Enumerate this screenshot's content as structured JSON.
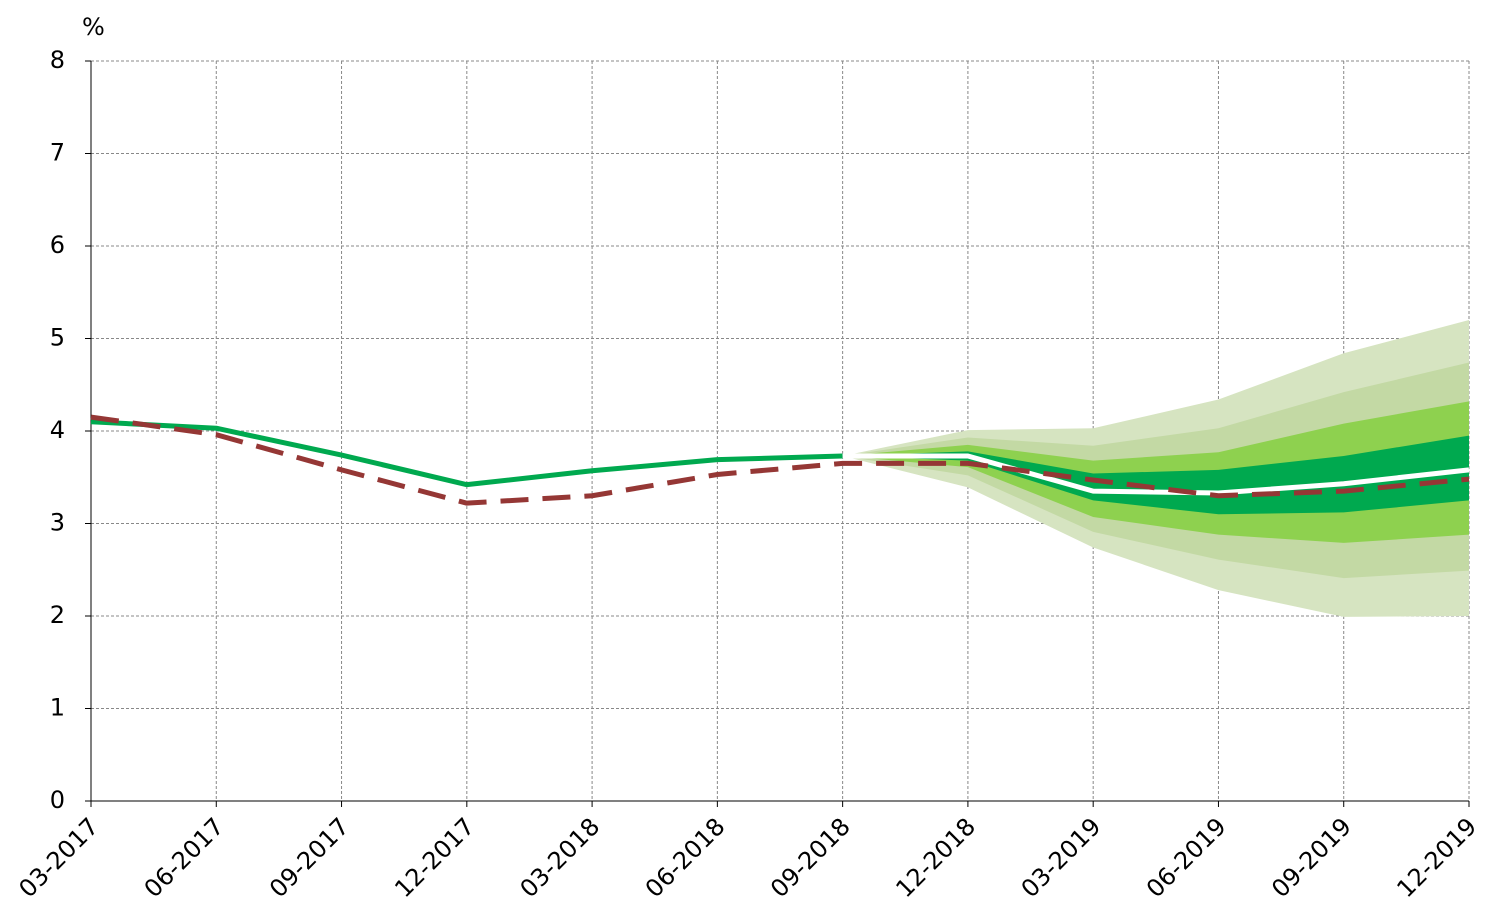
{
  "chart_data": {
    "type": "fan",
    "y_label": "%",
    "categories": [
      "03-2017",
      "06-2017",
      "09-2017",
      "12-2017",
      "03-2018",
      "06-2018",
      "09-2018",
      "12-2018",
      "03-2019",
      "06-2019",
      "09-2019",
      "12-2019"
    ],
    "ylim": [
      0,
      8
    ],
    "yticks": [
      0,
      1,
      2,
      3,
      4,
      5,
      6,
      7,
      8
    ],
    "grid": true,
    "bands": [
      {
        "color": "#d6e4c1",
        "upper": [
          null,
          null,
          null,
          null,
          null,
          null,
          3.73,
          4.01,
          4.03,
          4.34,
          4.84,
          5.2
        ],
        "lower": [
          null,
          null,
          null,
          null,
          null,
          null,
          3.73,
          3.39,
          2.74,
          2.28,
          1.99,
          2.0
        ]
      },
      {
        "color": "#c3d9a4",
        "upper": [
          null,
          null,
          null,
          null,
          null,
          null,
          3.73,
          3.93,
          3.84,
          4.03,
          4.42,
          4.74
        ],
        "lower": [
          null,
          null,
          null,
          null,
          null,
          null,
          3.73,
          3.52,
          2.91,
          2.61,
          2.41,
          2.49
        ]
      },
      {
        "color": "#8ed14f",
        "upper": [
          null,
          null,
          null,
          null,
          null,
          null,
          3.73,
          3.85,
          3.68,
          3.77,
          4.08,
          4.32
        ],
        "lower": [
          null,
          null,
          null,
          null,
          null,
          null,
          3.73,
          3.61,
          3.07,
          2.88,
          2.79,
          2.88
        ]
      },
      {
        "color": "#00a94f",
        "upper": [
          null,
          null,
          null,
          null,
          null,
          null,
          3.73,
          3.78,
          3.54,
          3.58,
          3.73,
          3.95
        ],
        "lower": [
          null,
          null,
          null,
          null,
          null,
          null,
          3.73,
          3.68,
          3.25,
          3.1,
          3.12,
          3.25
        ]
      }
    ],
    "series": [
      {
        "color": "#00a94f",
        "dash": false,
        "values": [
          4.1,
          4.03,
          3.74,
          3.42,
          3.57,
          3.69,
          3.73,
          null,
          null,
          null,
          null,
          null
        ]
      },
      {
        "color": "#ffffff",
        "dash": false,
        "values": [
          null,
          null,
          null,
          null,
          null,
          null,
          3.73,
          3.73,
          3.35,
          3.33,
          3.43,
          3.58
        ]
      },
      {
        "color": "#953735",
        "dash": true,
        "values": [
          4.15,
          3.96,
          3.58,
          3.22,
          3.3,
          3.53,
          3.65,
          3.65,
          3.47,
          3.3,
          3.35,
          3.48
        ]
      }
    ]
  }
}
